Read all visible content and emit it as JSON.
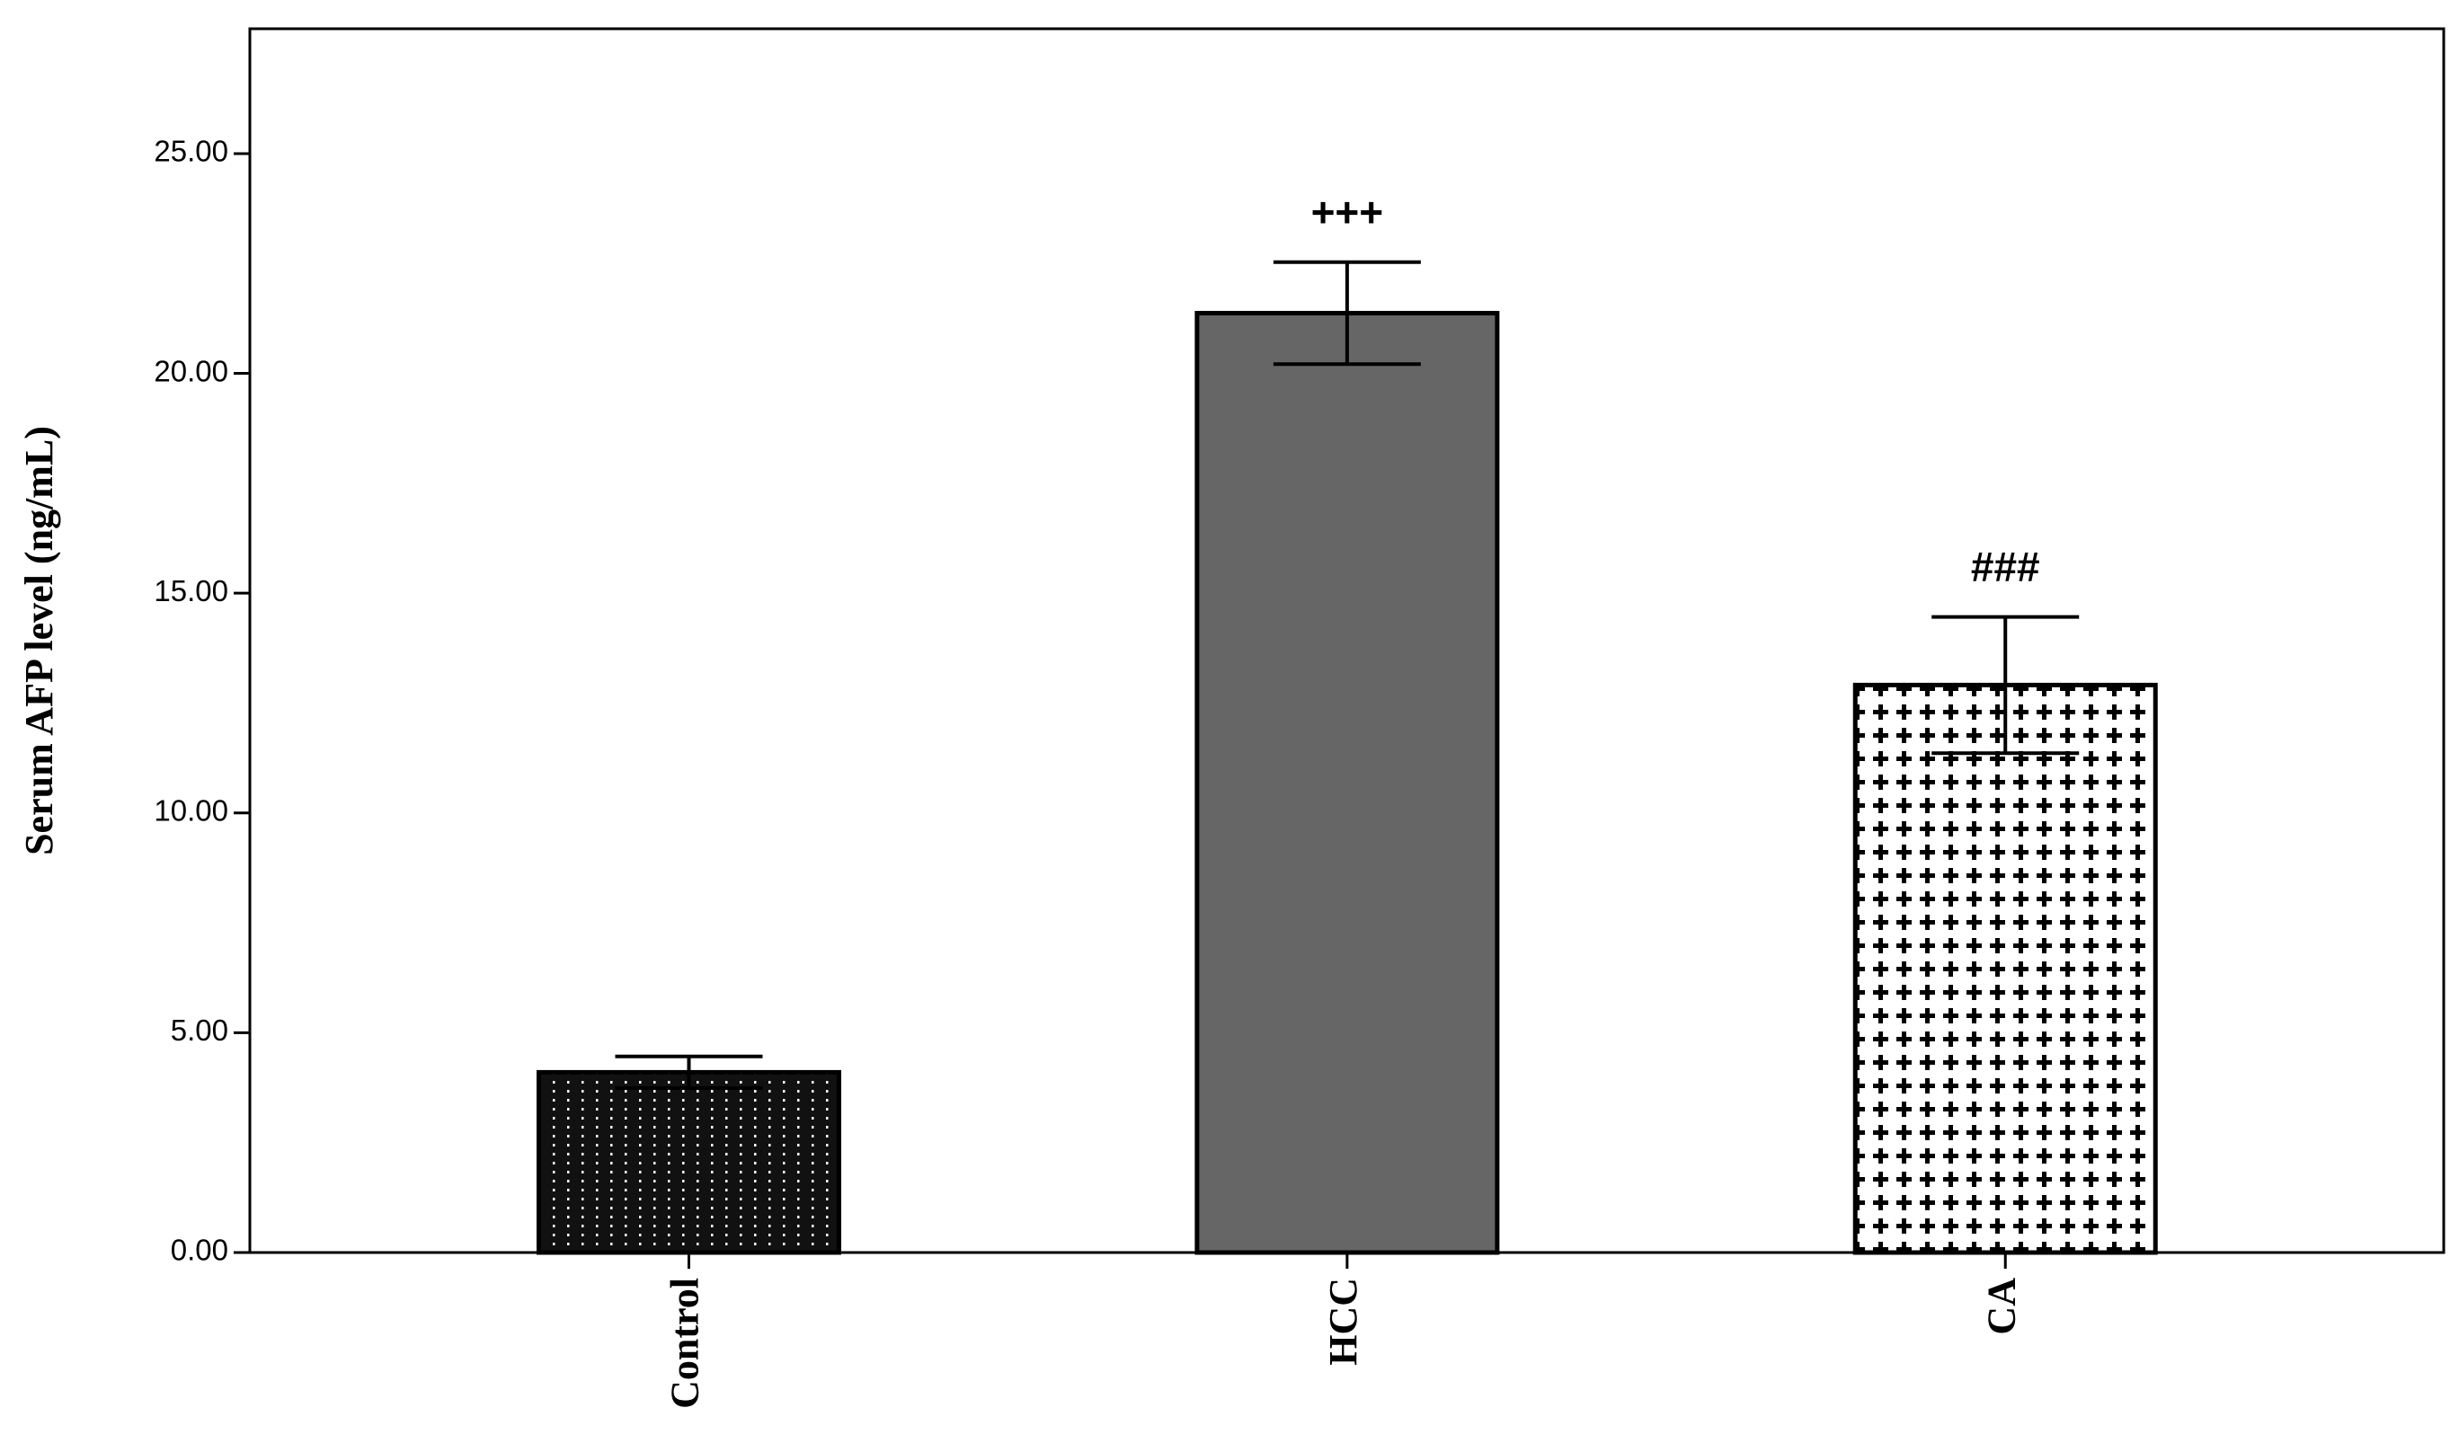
{
  "chart_data": {
    "type": "bar",
    "y_label": "Serum AFP level (ng/mL)",
    "categories": [
      "Control",
      "HCC",
      "CA"
    ],
    "values": [
      4.1,
      21.37,
      12.91
    ],
    "errors": [
      0.36,
      1.16,
      1.55
    ],
    "bar_labels": [
      null,
      "+++",
      "###"
    ],
    "colors": [
      "#111111",
      "#666666",
      "#ffffff"
    ],
    "fills": [
      "dots",
      "solid",
      "crosses"
    ],
    "ylim": [
      0,
      27.84
    ],
    "yticks": [
      {
        "value": 0,
        "label": "0.00"
      },
      {
        "value": 5,
        "label": "5.00"
      },
      {
        "value": 10,
        "label": "10.00"
      },
      {
        "value": 15,
        "label": "15.00"
      },
      {
        "value": 20,
        "label": "20.00"
      },
      {
        "value": 25,
        "label": "25.00"
      }
    ],
    "grid": false
  }
}
